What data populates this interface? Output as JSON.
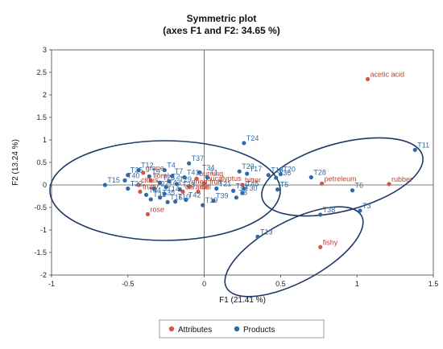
{
  "chart_data": {
    "type": "scatter",
    "title": "Symmetric plot",
    "subtitle": "(axes F1 and F2: 34.65 %)",
    "xlabel": "F1 (21.41 %)",
    "ylabel": "F2 (13.24 %)",
    "xlim": [
      -1,
      1.5
    ],
    "ylim": [
      -2,
      3
    ],
    "xticks": [
      "-1",
      "-0.5",
      "0",
      "0.5",
      "1",
      "1.5"
    ],
    "yticks": [
      "-2",
      "-1.5",
      "-1",
      "-0.5",
      "0",
      "0.5",
      "1",
      "1.5",
      "2",
      "2.5",
      "3"
    ],
    "grid": false,
    "legend_position": "bottom",
    "series": [
      {
        "name": "Attributes",
        "color": "#d0584a",
        "points": [
          {
            "label": "acetic acid",
            "x": 1.07,
            "y": 2.35
          },
          {
            "label": "rubber",
            "x": 1.21,
            "y": 0.02
          },
          {
            "label": "petreleum",
            "x": 0.77,
            "y": 0.03
          },
          {
            "label": "fishy",
            "x": 0.76,
            "y": -1.38
          },
          {
            "label": "grape",
            "x": -0.4,
            "y": 0.27
          },
          {
            "label": "floral",
            "x": -0.35,
            "y": 0.1
          },
          {
            "label": "citrus",
            "x": -0.43,
            "y": 0.0
          },
          {
            "label": "fruity",
            "x": -0.42,
            "y": -0.15
          },
          {
            "label": "rose",
            "x": -0.37,
            "y": -0.65
          },
          {
            "label": "burning",
            "x": -0.05,
            "y": 0.14
          },
          {
            "label": "eucalyptus",
            "x": 0.0,
            "y": 0.04
          },
          {
            "label": "dried fruit",
            "x": -0.1,
            "y": -0.04
          },
          {
            "label": "caramel",
            "x": -0.14,
            "y": -0.15
          },
          {
            "label": "dill",
            "x": -0.04,
            "y": -0.15
          },
          {
            "label": "bitter",
            "x": 0.25,
            "y": 0.0
          }
        ]
      },
      {
        "name": "Products",
        "color": "#2e6aa8",
        "points": [
          {
            "label": "T11",
            "x": 1.38,
            "y": 0.78
          },
          {
            "label": "T24",
            "x": 0.26,
            "y": 0.93
          },
          {
            "label": "T28",
            "x": 0.7,
            "y": 0.17
          },
          {
            "label": "T6",
            "x": 0.97,
            "y": -0.12
          },
          {
            "label": "T3",
            "x": 1.02,
            "y": -0.57
          },
          {
            "label": "T38",
            "x": 0.76,
            "y": -0.66
          },
          {
            "label": "T13",
            "x": 0.35,
            "y": -1.15
          },
          {
            "label": "T20",
            "x": 0.5,
            "y": 0.24
          },
          {
            "label": "T18",
            "x": 0.42,
            "y": 0.22
          },
          {
            "label": "T36",
            "x": 0.47,
            "y": 0.16
          },
          {
            "label": "T5",
            "x": 0.48,
            "y": -0.1
          },
          {
            "label": "T17",
            "x": 0.28,
            "y": 0.25
          },
          {
            "label": "T23",
            "x": 0.23,
            "y": 0.3
          },
          {
            "label": "T45",
            "x": 0.26,
            "y": -0.08
          },
          {
            "label": "T30",
            "x": 0.25,
            "y": -0.18
          },
          {
            "label": "T8",
            "x": 0.21,
            "y": -0.28
          },
          {
            "label": "T31",
            "x": 0.19,
            "y": -0.13
          },
          {
            "label": "T21",
            "x": 0.08,
            "y": -0.08
          },
          {
            "label": "T39",
            "x": 0.06,
            "y": -0.35
          },
          {
            "label": "T19",
            "x": -0.01,
            "y": -0.45
          },
          {
            "label": "T1",
            "x": 0.02,
            "y": 0.17
          },
          {
            "label": "T34",
            "x": -0.03,
            "y": 0.28
          },
          {
            "label": "T37",
            "x": -0.1,
            "y": 0.48
          },
          {
            "label": "T41",
            "x": -0.13,
            "y": 0.17
          },
          {
            "label": "T4",
            "x": -0.26,
            "y": 0.33
          },
          {
            "label": "T12",
            "x": -0.43,
            "y": 0.33
          },
          {
            "label": "T9",
            "x": -0.36,
            "y": 0.19
          },
          {
            "label": "T25",
            "x": -0.5,
            "y": 0.22
          },
          {
            "label": "T40",
            "x": -0.52,
            "y": 0.1
          },
          {
            "label": "T15",
            "x": -0.65,
            "y": 0.0
          },
          {
            "label": "T22",
            "x": -0.5,
            "y": -0.08
          },
          {
            "label": "T44",
            "x": -0.38,
            "y": -0.22
          },
          {
            "label": "T32",
            "x": -0.35,
            "y": -0.32
          },
          {
            "label": "T35",
            "x": -0.29,
            "y": -0.28
          },
          {
            "label": "T14",
            "x": -0.26,
            "y": -0.2
          },
          {
            "label": "T16",
            "x": -0.24,
            "y": -0.38
          },
          {
            "label": "T10",
            "x": -0.19,
            "y": -0.37
          },
          {
            "label": "T42",
            "x": -0.12,
            "y": -0.33
          },
          {
            "label": "T2",
            "x": -0.23,
            "y": 0.08
          },
          {
            "label": "T7",
            "x": -0.21,
            "y": 0.2
          },
          {
            "label": "T26",
            "x": -0.29,
            "y": 0.05
          },
          {
            "label": "T27",
            "x": -0.33,
            "y": -0.08
          },
          {
            "label": "T29",
            "x": -0.18,
            "y": 0.02
          },
          {
            "label": "T33",
            "x": -0.16,
            "y": -0.1
          },
          {
            "label": "T43",
            "x": -0.25,
            "y": -0.05
          }
        ]
      }
    ]
  }
}
